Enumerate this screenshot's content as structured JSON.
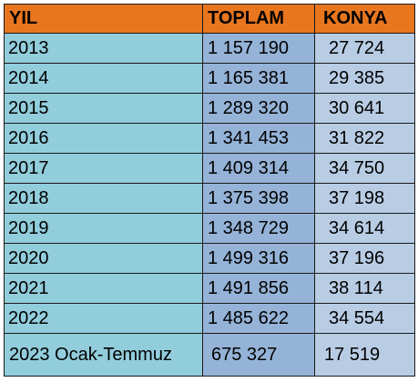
{
  "headers": {
    "year": "YIL",
    "total": "TOPLAM",
    "konya": "KONYA"
  },
  "rows": [
    {
      "year": "2013",
      "total": "1 157 190",
      "konya": "27 724"
    },
    {
      "year": "2014",
      "total": "1 165 381",
      "konya": "29 385"
    },
    {
      "year": "2015",
      "total": "1 289 320",
      "konya": "30 641"
    },
    {
      "year": "2016",
      "total": "1 341 453",
      "konya": "31 822"
    },
    {
      "year": "2017",
      "total": "1 409 314",
      "konya": "34 750"
    },
    {
      "year": "2018",
      "total": "1 375 398",
      "konya": "37 198"
    },
    {
      "year": "2019",
      "total": "1 348 729",
      "konya": "34 614"
    },
    {
      "year": "2020",
      "total": "1 499 316",
      "konya": "37 196"
    },
    {
      "year": "2021",
      "total": "1 491 856",
      "konya": "38 114"
    },
    {
      "year": "2022",
      "total": "1 485 622",
      "konya": "34 554"
    },
    {
      "year": "2023 Ocak-Temmuz",
      "total": "675 327",
      "konya": "17 519"
    }
  ],
  "colors": {
    "header_bg": "#e8761e",
    "year_col_bg": "#92cddc",
    "total_col_bg": "#95b3d7",
    "konya_col_bg": "#b8cce4"
  }
}
